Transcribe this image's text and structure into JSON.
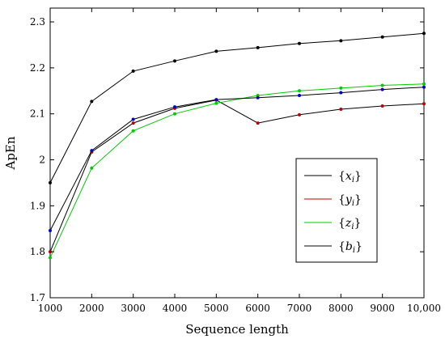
{
  "chart_data": {
    "type": "line",
    "xlabel": "Sequence length",
    "ylabel": "ApEn",
    "xlim": [
      1000,
      10000
    ],
    "ylim": [
      1.7,
      2.33
    ],
    "x": [
      1000,
      2000,
      3000,
      4000,
      5000,
      6000,
      7000,
      8000,
      9000,
      10000
    ],
    "x_tick_labels": [
      "1000",
      "2000",
      "3000",
      "4000",
      "5000",
      "6000",
      "7000",
      "8000",
      "9000",
      "10,000"
    ],
    "y_ticks": [
      1.7,
      1.8,
      1.9,
      2.0,
      2.1,
      2.2,
      2.3
    ],
    "y_tick_labels": [
      "1.7",
      "1.8",
      "1.9",
      "2",
      "2.1",
      "2.2",
      "2.3"
    ],
    "grid": false,
    "legend_position": "bottom-right",
    "series": [
      {
        "name": "{x_i}",
        "color": "#000000",
        "marker_color": "#000000",
        "values": [
          1.95,
          2.127,
          2.193,
          2.215,
          2.236,
          2.244,
          2.253,
          2.259,
          2.267,
          2.275
        ]
      },
      {
        "name": "{y_i}",
        "color": "#000000",
        "marker_color": "#c00000",
        "values": [
          1.8,
          2.017,
          2.08,
          2.112,
          2.13,
          2.08,
          2.098,
          2.11,
          2.117,
          2.122
        ]
      },
      {
        "name": "{z_i}",
        "color": "#00cc00",
        "marker_color": "#00cc00",
        "values": [
          1.787,
          1.982,
          2.063,
          2.1,
          2.123,
          2.14,
          2.15,
          2.156,
          2.162,
          2.165
        ]
      },
      {
        "name": "{b_i}",
        "color": "#000000",
        "marker_color": "#0000cc",
        "values": [
          1.846,
          2.02,
          2.088,
          2.115,
          2.131,
          2.135,
          2.14,
          2.146,
          2.153,
          2.158
        ]
      }
    ],
    "legend": [
      {
        "var": "x",
        "sub": "i",
        "color": "#000000"
      },
      {
        "var": "y",
        "sub": "i",
        "color": "#c00000"
      },
      {
        "var": "z",
        "sub": "i",
        "color": "#00cc00"
      },
      {
        "var": "b",
        "sub": "i",
        "color": "#000000"
      }
    ]
  }
}
